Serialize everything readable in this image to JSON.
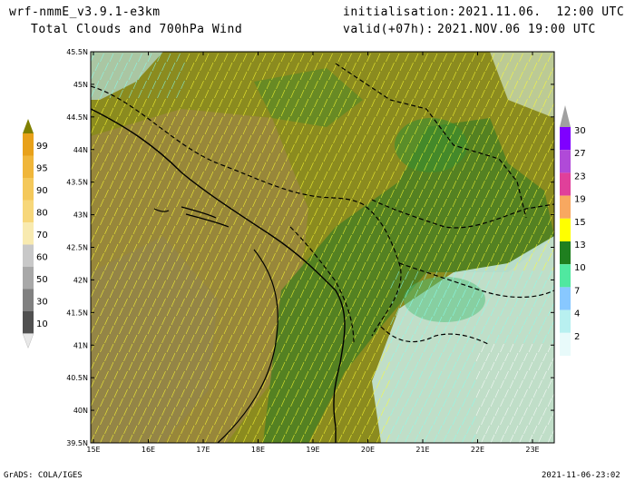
{
  "header": {
    "model": "wrf-nmmE_v3.9.1-e3km",
    "product": "Total Clouds and 700hPa Wind",
    "init_label": "initialisation:",
    "init_value": "2021.11.06.  12:00 UTC",
    "valid_label": "valid(+07h):",
    "valid_value": "2021.NOV.06 19:00 UTC"
  },
  "map": {
    "lat_labels": [
      "45.5N",
      "45N",
      "44.5N",
      "44N",
      "43.5N",
      "43N",
      "42.5N",
      "42N",
      "41.5N",
      "41N",
      "40.5N",
      "40N",
      "39.5N"
    ],
    "lon_labels": [
      "15E",
      "16E",
      "17E",
      "18E",
      "19E",
      "20E",
      "21E",
      "22E",
      "23E"
    ],
    "colors": {
      "olive": "#8b8b1f",
      "olive_dark": "#6f7a1a",
      "brownish": "#9a8a3a",
      "green": "#3e7f2a",
      "wind_yellow": "#ffff33",
      "wind_cyan": "#88ffee",
      "wind_white": "#ffffff",
      "coast": "#000000"
    }
  },
  "left_colorbar": {
    "labels": [
      "99",
      "95",
      "90",
      "80",
      "70",
      "60",
      "50",
      "30",
      "10"
    ],
    "colors": [
      "#e8a11a",
      "#f0b63a",
      "#f4c85a",
      "#f7d77a",
      "#f8eab0",
      "#c8c8c8",
      "#a8a8a8",
      "#808080",
      "#505050"
    ],
    "top_color": "#808000",
    "bottom_color": "#e8e8e8"
  },
  "right_colorbar": {
    "labels": [
      "30",
      "27",
      "23",
      "19",
      "15",
      "13",
      "10",
      "7",
      "4",
      "2"
    ],
    "colors": [
      "#7f00ff",
      "#b04ad8",
      "#e0409a",
      "#f8a860",
      "#ffff00",
      "#1f7f1f",
      "#50e8a0",
      "#88c8ff",
      "#b8f0f0",
      "#e8fafa"
    ],
    "top_color": "#a0a0a0"
  },
  "footer": {
    "left": "GrADS: COLA/IGES",
    "right": "2021-11-06-23:02"
  }
}
